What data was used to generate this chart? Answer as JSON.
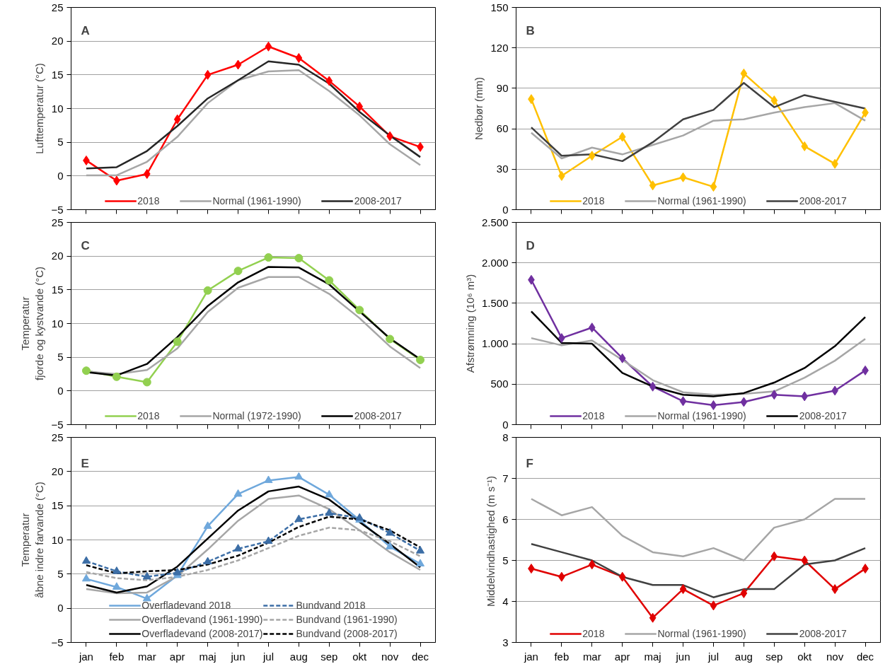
{
  "chart_data": [
    {
      "type": "line",
      "title": "A",
      "ylabel": "Lufttemperatur (°C)",
      "categories": [
        null,
        null,
        null,
        null,
        null,
        null,
        null,
        null,
        null,
        null,
        null,
        null
      ],
      "ylim": [
        -5,
        25
      ],
      "yticks": [
        -5,
        0,
        5,
        10,
        15,
        20,
        25
      ],
      "grid": "y",
      "legend": "bottom",
      "tick_labels": "y",
      "series": [
        {
          "name": "2018",
          "color": "#ff0000",
          "marker": "diamond",
          "values": [
            2.3,
            -0.7,
            0.3,
            8.4,
            15.0,
            16.5,
            19.2,
            17.5,
            14.1,
            10.3,
            5.9,
            4.3
          ]
        },
        {
          "name": "Normal (1961-1990)",
          "color": "#a6a6a6",
          "values": [
            0.1,
            0.1,
            2.1,
            5.8,
            10.8,
            14.2,
            15.5,
            15.7,
            12.6,
            9.0,
            4.7,
            1.6
          ]
        },
        {
          "name": "2008-2017",
          "color": "#262626",
          "values": [
            1.1,
            1.3,
            3.7,
            7.4,
            11.5,
            14.2,
            17.0,
            16.5,
            13.7,
            9.5,
            6.0,
            2.8
          ]
        }
      ]
    },
    {
      "type": "line",
      "title": "B",
      "ylabel": "Nedbør (mm)",
      "categories": [
        null,
        null,
        null,
        null,
        null,
        null,
        null,
        null,
        null,
        null,
        null,
        null
      ],
      "ylim": [
        0,
        150
      ],
      "yticks": [
        0,
        30,
        60,
        90,
        120,
        150
      ],
      "grid": "y",
      "legend": "bottom",
      "tick_labels": "y",
      "series": [
        {
          "name": "2018",
          "color": "#ffc000",
          "marker": "diamond",
          "values": [
            82,
            25,
            40,
            54,
            18,
            24,
            17,
            101,
            81,
            47,
            34,
            72
          ]
        },
        {
          "name": "Normal (1961-1990)",
          "color": "#a6a6a6",
          "values": [
            57,
            38,
            46,
            41,
            48,
            55,
            66,
            67,
            72,
            76,
            79,
            66
          ]
        },
        {
          "name": "2008-2017",
          "color": "#404040",
          "values": [
            61,
            40,
            41,
            36,
            50,
            67,
            74,
            94,
            76,
            85,
            80,
            75
          ]
        }
      ]
    },
    {
      "type": "line",
      "title": "C",
      "ylabel": "Temperatur\nfjorde og kystvande (°C)",
      "categories": [
        null,
        null,
        null,
        null,
        null,
        null,
        null,
        null,
        null,
        null,
        null,
        null
      ],
      "ylim": [
        -5,
        25
      ],
      "yticks": [
        -5,
        0,
        5,
        10,
        15,
        20,
        25
      ],
      "grid": "y",
      "legend": "bottom",
      "tick_labels": "y",
      "series": [
        {
          "name": "2018",
          "color": "#92d050",
          "marker": "circle",
          "values": [
            3.0,
            2.1,
            1.3,
            7.3,
            14.9,
            17.8,
            19.8,
            19.7,
            16.4,
            12.0,
            7.7,
            4.6
          ]
        },
        {
          "name": "Normal (1972-1990)",
          "color": "#a6a6a6",
          "values": [
            2.9,
            2.5,
            3.1,
            6.3,
            11.7,
            15.3,
            16.9,
            16.9,
            14.4,
            10.8,
            6.6,
            3.4
          ]
        },
        {
          "name": "2008-2017",
          "color": "#000000",
          "values": [
            2.8,
            2.3,
            4.0,
            8.0,
            12.6,
            16.1,
            18.4,
            18.3,
            15.8,
            11.8,
            7.8,
            4.7
          ]
        }
      ]
    },
    {
      "type": "line",
      "title": "D",
      "ylabel": "Afstrømning (10⁶ m³)",
      "categories": [
        null,
        null,
        null,
        null,
        null,
        null,
        null,
        null,
        null,
        null,
        null,
        null
      ],
      "ylim": [
        0,
        2500
      ],
      "yticks": [
        0,
        {
          "value": 500,
          "label": "500"
        },
        {
          "value": 1000,
          "label": "1.000"
        },
        {
          "value": 1500,
          "label": "1.500"
        },
        {
          "value": 2000,
          "label": "2.000"
        },
        {
          "value": 2500,
          "label": "2.500"
        }
      ],
      "grid": "y",
      "legend": "bottom",
      "tick_labels": "y",
      "series": [
        {
          "name": "2018",
          "color": "#7030a0",
          "marker": "diamond",
          "values": [
            1790,
            1070,
            1200,
            820,
            470,
            290,
            240,
            280,
            370,
            350,
            420,
            670
          ]
        },
        {
          "name": "Normal (1961-1990)",
          "color": "#a6a6a6",
          "values": [
            1070,
            980,
            1040,
            800,
            550,
            400,
            370,
            380,
            410,
            580,
            790,
            1060
          ]
        },
        {
          "name": "2008-2017",
          "color": "#000000",
          "values": [
            1400,
            1010,
            1000,
            640,
            470,
            370,
            350,
            390,
            520,
            700,
            970,
            1330
          ]
        }
      ]
    },
    {
      "type": "line",
      "title": "E",
      "ylabel": "Temperatur\nåbne indre farvande (°C)",
      "categories": [
        "jan",
        "feb",
        "mar",
        "apr",
        "maj",
        "jun",
        "jul",
        "aug",
        "sep",
        "okt",
        "nov",
        "dec"
      ],
      "ylim": [
        -5,
        25
      ],
      "yticks": [
        -5,
        0,
        5,
        10,
        15,
        20,
        25
      ],
      "grid": "y",
      "legend": "bottom",
      "series": [
        {
          "name": "Overfladevand 2018",
          "color": "#6fa8dc",
          "marker": "triangle",
          "values": [
            4.3,
            3.1,
            1.4,
            4.8,
            12.0,
            16.7,
            18.7,
            19.2,
            16.6,
            12.9,
            9.0,
            6.5
          ]
        },
        {
          "name": "Overfladevand (1961-1990)",
          "color": "#a6a6a6",
          "values": [
            2.8,
            2.2,
            2.3,
            4.7,
            8.6,
            12.8,
            16.0,
            16.5,
            14.5,
            11.4,
            8.2,
            5.6
          ]
        },
        {
          "name": "Overfladevand (2008-2017)",
          "color": "#000000",
          "values": [
            3.4,
            2.3,
            3.2,
            6.1,
            10.2,
            14.3,
            17.1,
            17.8,
            15.9,
            12.6,
            9.4,
            6.0
          ]
        },
        {
          "name": "Bundvand 2018",
          "color": "#3c6ea6",
          "marker": "triangle",
          "line_style": "dashed",
          "values": [
            6.9,
            5.4,
            4.6,
            5.2,
            6.8,
            8.7,
            9.8,
            13.0,
            13.9,
            13.2,
            11.0,
            8.4
          ]
        },
        {
          "name": "Bundvand (1961-1990)",
          "color": "#a6a6a6",
          "line_style": "dashed",
          "values": [
            5.3,
            4.4,
            4.1,
            4.6,
            5.6,
            7.0,
            8.8,
            10.6,
            11.8,
            11.4,
            9.8,
            7.6
          ]
        },
        {
          "name": "Bundvand (2008-2017)",
          "color": "#000000",
          "line_style": "dashed",
          "values": [
            6.3,
            5.1,
            5.4,
            5.6,
            6.4,
            7.7,
            9.6,
            11.9,
            13.4,
            13.0,
            11.4,
            8.9
          ]
        }
      ]
    },
    {
      "type": "line",
      "title": "F",
      "ylabel": "Middelvindhastighed  (m s⁻¹)",
      "categories": [
        "jan",
        "feb",
        "mar",
        "apr",
        "maj",
        "jun",
        "jul",
        "aug",
        "sep",
        "okt",
        "nov",
        "dec"
      ],
      "ylim": [
        3,
        8
      ],
      "yticks": [
        3,
        4,
        5,
        6,
        7,
        8
      ],
      "grid": "y",
      "legend": "bottom",
      "series": [
        {
          "name": "2018",
          "color": "#e00000",
          "marker": "diamond",
          "values": [
            4.8,
            4.6,
            4.9,
            4.6,
            3.6,
            4.3,
            3.9,
            4.2,
            5.1,
            5.0,
            4.3,
            4.8
          ]
        },
        {
          "name": "Normal (1961-1990)",
          "color": "#a6a6a6",
          "values": [
            6.5,
            6.1,
            6.3,
            5.6,
            5.2,
            5.1,
            5.3,
            5.0,
            5.8,
            6.0,
            6.5,
            6.5
          ]
        },
        {
          "name": "2008-2017",
          "color": "#404040",
          "values": [
            5.4,
            5.2,
            5.0,
            4.6,
            4.4,
            4.4,
            4.1,
            4.3,
            4.3,
            4.9,
            5.0,
            5.3
          ]
        }
      ]
    }
  ]
}
